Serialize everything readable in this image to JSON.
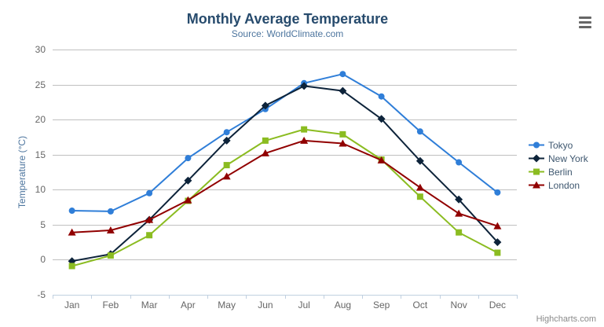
{
  "ui": {
    "credits": "Highcharts.com",
    "menu_icon": "hamburger-icon"
  },
  "chart_data": {
    "type": "line",
    "title": "Monthly Average Temperature",
    "subtitle": "Source: WorldClimate.com",
    "xlabel": "",
    "ylabel": "Temperature (°C)",
    "categories": [
      "Jan",
      "Feb",
      "Mar",
      "Apr",
      "May",
      "Jun",
      "Jul",
      "Aug",
      "Sep",
      "Oct",
      "Nov",
      "Dec"
    ],
    "series": [
      {
        "name": "Tokyo",
        "marker": "circle",
        "color": "#2f7ed8",
        "values": [
          7.0,
          6.9,
          9.5,
          14.5,
          18.2,
          21.5,
          25.2,
          26.5,
          23.3,
          18.3,
          13.9,
          9.6
        ]
      },
      {
        "name": "New York",
        "marker": "diamond",
        "color": "#0d233a",
        "values": [
          -0.2,
          0.8,
          5.7,
          11.3,
          17.0,
          22.0,
          24.8,
          24.1,
          20.1,
          14.1,
          8.6,
          2.5
        ]
      },
      {
        "name": "Berlin",
        "marker": "square",
        "color": "#8bbc21",
        "values": [
          -0.9,
          0.6,
          3.5,
          8.4,
          13.5,
          17.0,
          18.6,
          17.9,
          14.3,
          9.0,
          3.9,
          1.0
        ]
      },
      {
        "name": "London",
        "marker": "triangle",
        "color": "#910000",
        "values": [
          3.9,
          4.2,
          5.7,
          8.5,
          11.9,
          15.2,
          17.0,
          16.6,
          14.2,
          10.3,
          6.6,
          4.8
        ]
      }
    ],
    "ylim": [
      -5,
      30
    ],
    "ytick_interval": 5,
    "grid": true,
    "legend_position": "right",
    "grid_color": "#c0c0c0",
    "axis_color": "#c0d0e0"
  }
}
